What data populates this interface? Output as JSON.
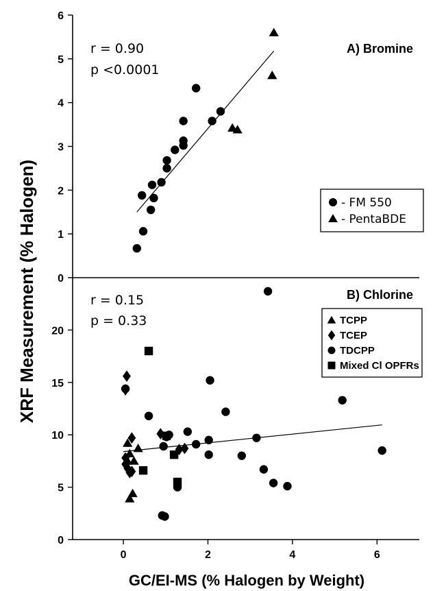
{
  "chart_data": [
    {
      "type": "scatter",
      "panel_title": "A) Bromine",
      "annotations": [
        "r = 0.90",
        "p <0.0001"
      ],
      "ylim": [
        0,
        6
      ],
      "yticks": [
        "0",
        "1",
        "2",
        "3",
        "4",
        "5",
        "6"
      ],
      "xlim": [
        -1.2,
        7.0
      ],
      "legend": {
        "entries": [
          "-  FM 550",
          "- PentaBDE"
        ],
        "position": "right-middle"
      },
      "series": [
        {
          "name": "FM 550",
          "marker": "circle",
          "points": [
            [
              0.32,
              0.67
            ],
            [
              0.47,
              1.06
            ],
            [
              0.44,
              1.88
            ],
            [
              0.65,
              1.55
            ],
            [
              0.68,
              2.12
            ],
            [
              0.72,
              1.82
            ],
            [
              0.9,
              2.18
            ],
            [
              1.03,
              2.5
            ],
            [
              1.03,
              2.68
            ],
            [
              1.22,
              2.92
            ],
            [
              1.42,
              3.02
            ],
            [
              1.42,
              3.13
            ],
            [
              1.42,
              3.58
            ],
            [
              1.72,
              4.33
            ],
            [
              2.1,
              3.58
            ],
            [
              2.3,
              3.8
            ]
          ]
        },
        {
          "name": "PentaBDE",
          "marker": "triangle",
          "points": [
            [
              2.58,
              3.42
            ],
            [
              2.7,
              3.38
            ],
            [
              3.52,
              4.62
            ],
            [
              3.56,
              5.6
            ]
          ]
        }
      ],
      "fit": {
        "x": [
          0.32,
          3.56
        ],
        "y": [
          1.5,
          5.18
        ]
      }
    },
    {
      "type": "scatter",
      "panel_title": "B) Chlorine",
      "annotations": [
        "r = 0.15",
        "p = 0.33"
      ],
      "ylim": [
        0,
        25
      ],
      "yticks": [
        "0",
        "5",
        "10",
        "15",
        "20"
      ],
      "xlim": [
        -1.2,
        7.0
      ],
      "xticks": [
        "0",
        "2",
        "4",
        "6"
      ],
      "legend": {
        "entries": [
          "TCPP",
          "TCEP",
          "TDCPP",
          "Mixed Cl OPFRs"
        ],
        "position": "top-right"
      },
      "series": [
        {
          "name": "TCPP",
          "marker": "triangle",
          "points": [
            [
              0.1,
              9.2
            ],
            [
              0.1,
              7.5
            ],
            [
              0.15,
              8.2
            ],
            [
              0.15,
              3.9
            ],
            [
              0.22,
              4.4
            ],
            [
              0.25,
              7.5
            ],
            [
              0.35,
              8.7
            ]
          ]
        },
        {
          "name": "TCEP",
          "marker": "diamond",
          "points": [
            [
              0.08,
              15.6
            ],
            [
              0.05,
              14.3
            ],
            [
              0.05,
              7.8
            ],
            [
              0.05,
              7.2
            ],
            [
              0.1,
              6.8
            ],
            [
              0.15,
              6.4
            ],
            [
              0.2,
              9.7
            ],
            [
              0.2,
              6.5
            ],
            [
              0.88,
              10.1
            ],
            [
              1.32,
              8.6
            ],
            [
              1.45,
              8.7
            ]
          ]
        },
        {
          "name": "TDCPP",
          "marker": "circle",
          "points": [
            [
              0.05,
              14.4
            ],
            [
              0.6,
              11.8
            ],
            [
              0.95,
              8.9
            ],
            [
              1.02,
              9.8
            ],
            [
              1.08,
              10.0
            ],
            [
              0.92,
              2.3
            ],
            [
              0.98,
              2.2
            ],
            [
              1.28,
              5.0
            ],
            [
              1.52,
              10.3
            ],
            [
              1.72,
              9.1
            ],
            [
              2.02,
              8.1
            ],
            [
              2.02,
              9.5
            ],
            [
              2.05,
              15.2
            ],
            [
              2.42,
              12.2
            ],
            [
              2.8,
              8.0
            ],
            [
              3.15,
              9.7
            ],
            [
              3.32,
              6.7
            ],
            [
              3.42,
              23.7
            ],
            [
              3.55,
              5.4
            ],
            [
              3.88,
              5.1
            ],
            [
              5.18,
              13.3
            ],
            [
              6.12,
              8.5
            ]
          ]
        },
        {
          "name": "Mixed Cl OPFRs",
          "marker": "square",
          "points": [
            [
              0.6,
              18.0
            ],
            [
              0.47,
              6.6
            ],
            [
              1.02,
              9.9
            ],
            [
              1.2,
              8.1
            ],
            [
              1.28,
              5.5
            ]
          ]
        }
      ],
      "fit": {
        "x": [
          0.0,
          6.12
        ],
        "y": [
          8.4,
          10.95
        ]
      }
    }
  ],
  "labels": {
    "ylabel": "XRF Measurement (% Halogen)",
    "xlabel": "GC/EI-MS (% Halogen by Weight)"
  }
}
